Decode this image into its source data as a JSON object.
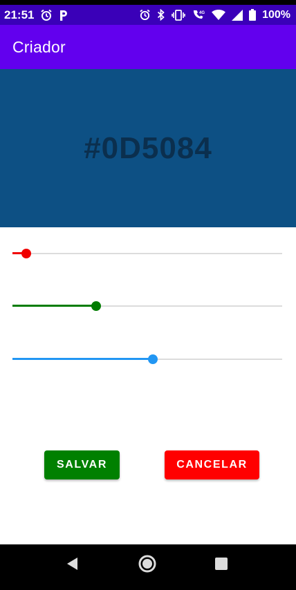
{
  "status_bar": {
    "time": "21:51",
    "battery_percent": "100%",
    "icons_left": [
      "alarm-icon",
      "parking-icon"
    ],
    "icons_right": [
      "alarm-icon",
      "bluetooth-icon",
      "vibrate-icon",
      "wifi-calling-icon",
      "wifi-icon",
      "signal-icon",
      "battery-icon"
    ],
    "background": "#3a00b8"
  },
  "app_bar": {
    "title": "Criador",
    "background": "#6200ee"
  },
  "preview": {
    "hex": "#0D5084",
    "color": "#0d5084"
  },
  "sliders": [
    {
      "name": "red",
      "color": "#f00000",
      "value": 0.05
    },
    {
      "name": "green",
      "color": "#007c00",
      "value": 0.31
    },
    {
      "name": "blue",
      "color": "#2196f3",
      "value": 0.52
    }
  ],
  "buttons": {
    "save": {
      "label": "SALVAR",
      "color": "#008000"
    },
    "cancel": {
      "label": "CANCELAR",
      "color": "#ff0000"
    }
  },
  "nav_bar": {
    "icons": [
      "back-icon",
      "home-icon",
      "recents-icon"
    ]
  }
}
